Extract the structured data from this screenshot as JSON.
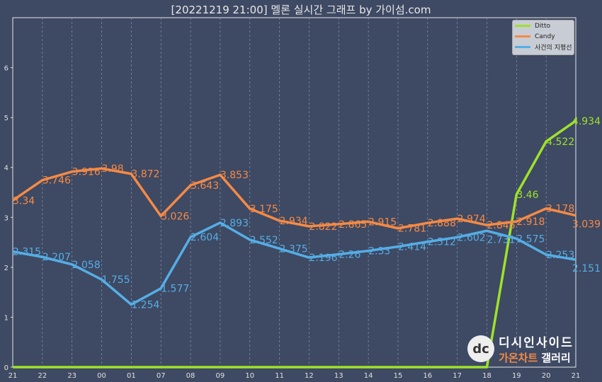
{
  "title": "[20221219 21:00] 멜론 실시간 그래프 by 가이섬.com",
  "watermark": {
    "line1": "디시인사이드",
    "line2a": "가온차트",
    "line2b": "갤러리",
    "logo": "dc"
  },
  "chart_data": {
    "type": "line",
    "title": "[20221219 21:00] 멜론 실시간 그래프 by 가이섬.com",
    "categories": [
      "21",
      "22",
      "23",
      "00",
      "01",
      "07",
      "08",
      "09",
      "10",
      "11",
      "12",
      "13",
      "14",
      "15",
      "16",
      "17",
      "18",
      "19",
      "20",
      "21"
    ],
    "ylim": [
      0,
      7
    ],
    "yticks": [
      0,
      1,
      2,
      3,
      4,
      5,
      6
    ],
    "grid": "vertical dashed",
    "legend": "top-right",
    "series": [
      {
        "name": "Ditto",
        "color": "#9ee22a",
        "values": [
          0,
          0,
          0,
          0,
          0,
          0,
          0,
          0,
          0,
          0,
          0,
          0,
          0,
          0,
          0,
          0,
          0,
          3.46,
          4.522,
          4.934
        ]
      },
      {
        "name": "Candy",
        "color": "#f58a45",
        "values": [
          3.34,
          3.746,
          3.916,
          3.98,
          3.872,
          3.026,
          3.643,
          3.853,
          3.175,
          2.934,
          2.822,
          2.865,
          2.915,
          2.781,
          2.888,
          2.974,
          2.846,
          2.918,
          3.178,
          3.039
        ]
      },
      {
        "name": "사건의 지평선",
        "color": "#55aee6",
        "values": [
          2.315,
          2.207,
          2.058,
          1.755,
          1.254,
          1.577,
          2.604,
          2.893,
          2.552,
          2.375,
          2.196,
          2.26,
          2.33,
          2.414,
          2.512,
          2.602,
          2.731,
          2.575,
          2.253,
          2.151
        ]
      }
    ]
  }
}
